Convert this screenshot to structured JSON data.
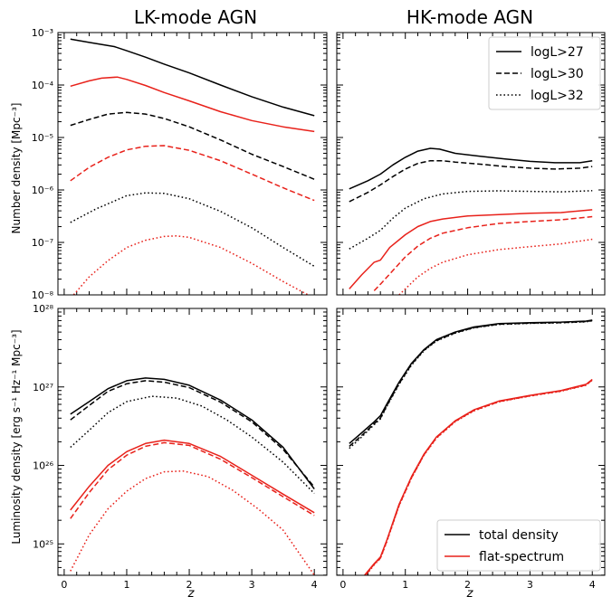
{
  "chart_data": {
    "type": "line",
    "col_titles": [
      "LK-mode AGN",
      "HK-mode AGN"
    ],
    "xlabel": "z",
    "xlim": [
      -0.1,
      4.2
    ],
    "xticks": [
      "0",
      "1",
      "2",
      "3",
      "4"
    ],
    "rows": [
      {
        "ylabel": "Number density [Mpc⁻³]",
        "yscale": "log",
        "ylim_exp": [
          -8,
          -3
        ],
        "ytick_labels": [
          "10⁻⁸",
          "10⁻⁷",
          "10⁻⁶",
          "10⁻⁵",
          "10⁻⁴",
          "10⁻³"
        ],
        "legend": {
          "panel": 1,
          "placement": "top-right",
          "entries": [
            {
              "label": "logL>27",
              "style": "solid"
            },
            {
              "label": "logL>30",
              "style": "dashed"
            },
            {
              "label": "logL>32",
              "style": "dotted"
            }
          ]
        }
      },
      {
        "ylabel": "Luminosity density [erg s⁻¹ Hz⁻¹ Mpc⁻³]",
        "yscale": "log",
        "ylim_exp": [
          24.6,
          28
        ],
        "ytick_labels": [
          "10²⁵",
          "10²⁶",
          "10²⁷",
          "10²⁸"
        ],
        "legend": {
          "panel": 1,
          "placement": "bottom-right",
          "entries": [
            {
              "label": "total density",
              "color": "#000000"
            },
            {
              "label": "flat-spectrum",
              "color": "#e8211a"
            }
          ]
        }
      }
    ],
    "panels": [
      {
        "row": 0,
        "col": 0,
        "series": [
          {
            "color": "#000000",
            "style": "solid",
            "x": [
              0.1,
              0.4,
              0.8,
              1.0,
              1.3,
              1.6,
              2.0,
              2.5,
              3.0,
              3.5,
              4.0
            ],
            "y": [
              0.00075,
              0.00065,
              0.00054,
              0.00045,
              0.00034,
              0.00025,
              0.00017,
              0.0001,
              6e-05,
              3.8e-05,
              2.6e-05
            ]
          },
          {
            "color": "#e8211a",
            "style": "solid",
            "x": [
              0.1,
              0.4,
              0.6,
              0.85,
              1.0,
              1.3,
              1.6,
              2.0,
              2.5,
              3.0,
              3.5,
              4.0
            ],
            "y": [
              9.5e-05,
              0.00012,
              0.000135,
              0.000142,
              0.000128,
              9.8e-05,
              7.2e-05,
              5e-05,
              3.1e-05,
              2.1e-05,
              1.6e-05,
              1.3e-05
            ]
          },
          {
            "color": "#000000",
            "style": "dashed",
            "x": [
              0.1,
              0.4,
              0.7,
              1.0,
              1.3,
              1.6,
              2.0,
              2.5,
              3.0,
              3.5,
              4.0
            ],
            "y": [
              1.7e-05,
              2.2e-05,
              2.8e-05,
              3e-05,
              2.8e-05,
              2.3e-05,
              1.6e-05,
              9e-06,
              4.8e-06,
              2.8e-06,
              1.6e-06
            ]
          },
          {
            "color": "#e8211a",
            "style": "dashed",
            "x": [
              0.1,
              0.4,
              0.7,
              1.0,
              1.3,
              1.6,
              2.0,
              2.5,
              3.0,
              3.5,
              4.0
            ],
            "y": [
              1.5e-06,
              2.7e-06,
              4.2e-06,
              5.8e-06,
              6.8e-06,
              7e-06,
              5.7e-06,
              3.6e-06,
              2e-06,
              1.1e-06,
              6.3e-07
            ]
          },
          {
            "color": "#000000",
            "style": "dotted",
            "x": [
              0.1,
              0.5,
              1.0,
              1.3,
              1.6,
              2.0,
              2.5,
              3.0,
              3.5,
              4.0
            ],
            "y": [
              2.4e-07,
              4.3e-07,
              7.8e-07,
              8.8e-07,
              8.6e-07,
              6.8e-07,
              3.9e-07,
              1.9e-07,
              8e-08,
              3.5e-08
            ]
          },
          {
            "color": "#e8211a",
            "style": "dotted",
            "x": [
              0.15,
              0.4,
              0.7,
              1.0,
              1.3,
              1.6,
              1.8,
              2.0,
              2.5,
              3.0,
              3.5,
              3.9
            ],
            "y": [
              1e-08,
              2.2e-08,
              4.5e-08,
              8e-08,
              1.1e-07,
              1.3e-07,
              1.33e-07,
              1.25e-07,
              8e-08,
              4e-08,
              1.8e-08,
              1e-08
            ]
          }
        ]
      },
      {
        "row": 0,
        "col": 1,
        "series": [
          {
            "color": "#000000",
            "style": "solid",
            "x": [
              0.1,
              0.4,
              0.6,
              0.8,
              1.0,
              1.2,
              1.4,
              1.55,
              1.8,
              2.2,
              2.6,
              3.0,
              3.4,
              3.8,
              4.0
            ],
            "y": [
              1.05e-06,
              1.5e-06,
              2e-06,
              3e-06,
              4.2e-06,
              5.5e-06,
              6.2e-06,
              6e-06,
              5e-06,
              4.4e-06,
              3.9e-06,
              3.5e-06,
              3.3e-06,
              3.3e-06,
              3.6e-06
            ]
          },
          {
            "color": "#000000",
            "style": "dashed",
            "x": [
              0.1,
              0.4,
              0.6,
              0.8,
              1.0,
              1.2,
              1.4,
              1.6,
              1.8,
              2.2,
              2.6,
              3.0,
              3.4,
              3.8,
              4.0
            ],
            "y": [
              6e-07,
              9e-07,
              1.25e-06,
              1.8e-06,
              2.5e-06,
              3.2e-06,
              3.6e-06,
              3.6e-06,
              3.4e-06,
              3.1e-06,
              2.8e-06,
              2.6e-06,
              2.5e-06,
              2.6e-06,
              2.8e-06
            ]
          },
          {
            "color": "#000000",
            "style": "dotted",
            "x": [
              0.1,
              0.4,
              0.6,
              0.8,
              1.0,
              1.3,
              1.6,
              2.0,
              2.5,
              3.0,
              3.5,
              4.0
            ],
            "y": [
              7.5e-08,
              1.2e-07,
              1.7e-07,
              2.9e-07,
              4.5e-07,
              6.8e-07,
              8.4e-07,
              9.4e-07,
              9.6e-07,
              9.4e-07,
              9.2e-07,
              9.7e-07
            ]
          },
          {
            "color": "#e8211a",
            "style": "solid",
            "x": [
              0.1,
              0.3,
              0.5,
              0.6,
              0.75,
              1.0,
              1.2,
              1.4,
              1.6,
              2.0,
              2.5,
              3.0,
              3.5,
              4.0
            ],
            "y": [
              1.3e-08,
              2.4e-08,
              4.2e-08,
              4.6e-08,
              8e-08,
              1.4e-07,
              2e-07,
              2.5e-07,
              2.8e-07,
              3.2e-07,
              3.4e-07,
              3.6e-07,
              3.7e-07,
              4.2e-07
            ]
          },
          {
            "color": "#e8211a",
            "style": "dashed",
            "x": [
              0.5,
              0.6,
              0.75,
              1.0,
              1.2,
              1.4,
              1.6,
              2.0,
              2.5,
              3.0,
              3.5,
              4.0
            ],
            "y": [
              1.2e-08,
              1.6e-08,
              2.5e-08,
              5.3e-08,
              8.5e-08,
              1.2e-07,
              1.5e-07,
              1.9e-07,
              2.3e-07,
              2.5e-07,
              2.7e-07,
              3.1e-07
            ]
          },
          {
            "color": "#e8211a",
            "style": "dotted",
            "x": [
              0.9,
              1.0,
              1.2,
              1.4,
              1.6,
              2.0,
              2.5,
              3.0,
              3.5,
              4.0
            ],
            "y": [
              1e-08,
              1.3e-08,
              2.2e-08,
              3.2e-08,
              4.2e-08,
              5.8e-08,
              7.3e-08,
              8.3e-08,
              9.4e-08,
              1.15e-07
            ]
          }
        ]
      },
      {
        "row": 1,
        "col": 0,
        "series": [
          {
            "color": "#000000",
            "style": "solid",
            "x": [
              0.1,
              0.4,
              0.7,
              1.0,
              1.3,
              1.6,
              2.0,
              2.5,
              3.0,
              3.5,
              4.0
            ],
            "y": [
              4.5e+26,
              6.5e+26,
              9.5e+26,
              1.2e+27,
              1.3e+27,
              1.25e+27,
              1.05e+27,
              6.8e+26,
              3.8e+26,
              1.7e+26,
              5e+25
            ]
          },
          {
            "color": "#000000",
            "style": "dashed",
            "x": [
              0.1,
              0.4,
              0.7,
              1.0,
              1.3,
              1.6,
              2.0,
              2.5,
              3.0,
              3.5,
              4.0
            ],
            "y": [
              3.8e+26,
              5.8e+26,
              8.8e+26,
              1.1e+27,
              1.2e+27,
              1.15e+27,
              9.8e+26,
              6.4e+26,
              3.6e+26,
              1.6e+26,
              5.3e+25
            ]
          },
          {
            "color": "#000000",
            "style": "dotted",
            "x": [
              0.1,
              0.4,
              0.7,
              1.0,
              1.4,
              1.8,
              2.2,
              2.6,
              3.0,
              3.5,
              4.0
            ],
            "y": [
              1.7e+26,
              2.8e+26,
              4.7e+26,
              6.5e+26,
              7.6e+26,
              7.2e+26,
              5.7e+26,
              3.8e+26,
              2.3e+26,
              1.1e+26,
              4.4e+25
            ]
          },
          {
            "color": "#e8211a",
            "style": "solid",
            "x": [
              0.1,
              0.4,
              0.7,
              1.0,
              1.3,
              1.6,
              2.0,
              2.5,
              3.0,
              3.5,
              4.0
            ],
            "y": [
              2.7e+25,
              5.4e+25,
              1e+26,
              1.5e+26,
              1.9e+26,
              2.1e+26,
              1.9e+26,
              1.3e+26,
              7.5e+25,
              4.3e+25,
              2.5e+25
            ]
          },
          {
            "color": "#e8211a",
            "style": "dashed",
            "x": [
              0.1,
              0.4,
              0.7,
              1.0,
              1.3,
              1.6,
              2.0,
              2.5,
              3.0,
              3.5,
              4.0
            ],
            "y": [
              2.1e+25,
              4.5e+25,
              8.8e+25,
              1.35e+26,
              1.75e+26,
              1.95e+26,
              1.8e+26,
              1.2e+26,
              7e+25,
              4e+25,
              2.3e+25
            ]
          },
          {
            "color": "#e8211a",
            "style": "dotted",
            "x": [
              0.1,
              0.4,
              0.7,
              1.0,
              1.3,
              1.6,
              1.9,
              2.3,
              2.7,
              3.1,
              3.5,
              4.0
            ],
            "y": [
              4.5e+24,
              1.3e+25,
              2.8e+25,
              4.7e+25,
              6.8e+25,
              8.3e+25,
              8.5e+25,
              7.2e+25,
              4.8e+25,
              2.8e+25,
              1.5e+25,
              4e+24
            ]
          }
        ]
      },
      {
        "row": 1,
        "col": 1,
        "series": [
          {
            "color": "#000000",
            "style": "solid",
            "x": [
              0.1,
              0.3,
              0.5,
              0.6,
              0.7,
              0.9,
              1.1,
              1.3,
              1.5,
              1.8,
              2.1,
              2.5,
              3.0,
              3.5,
              3.9,
              4.0
            ],
            "y": [
              1.9e+26,
              2.6e+26,
              3.6e+26,
              4.3e+26,
              6e+26,
              1.15e+27,
              2e+27,
              3e+27,
              4e+27,
              5e+27,
              5.8e+27,
              6.4e+27,
              6.6e+27,
              6.7e+27,
              6.9e+27,
              7.1e+27
            ]
          },
          {
            "color": "#000000",
            "style": "dashed",
            "x": [
              0.1,
              0.3,
              0.5,
              0.6,
              0.7,
              0.9,
              1.1,
              1.3,
              1.5,
              1.8,
              2.1,
              2.5,
              3.0,
              3.5,
              3.9,
              4.0
            ],
            "y": [
              1.75e+26,
              2.4e+26,
              3.4e+26,
              4e+26,
              5.7e+26,
              1.1e+27,
              1.95e+27,
              2.95e+27,
              3.9e+27,
              4.9e+27,
              5.7e+27,
              6.3e+27,
              6.5e+27,
              6.6e+27,
              6.8e+27,
              7e+27
            ]
          },
          {
            "color": "#000000",
            "style": "dotted",
            "x": [
              0.1,
              0.3,
              0.5,
              0.6,
              0.7,
              0.9,
              1.1,
              1.3,
              1.5,
              1.8,
              2.1,
              2.5,
              3.0,
              3.5,
              3.9,
              4.0
            ],
            "y": [
              1.65e+26,
              2.3e+26,
              3.3e+26,
              3.9e+26,
              5.6e+26,
              1.08e+27,
              1.9e+27,
              2.9e+27,
              3.85e+27,
              4.85e+27,
              5.65e+27,
              6.25e+27,
              6.45e+27,
              6.55e+27,
              6.75e+27,
              6.95e+27
            ]
          },
          {
            "color": "#e8211a",
            "style": "solid",
            "x": [
              0.3,
              0.5,
              0.6,
              0.7,
              0.9,
              1.1,
              1.3,
              1.5,
              1.8,
              2.1,
              2.5,
              3.0,
              3.5,
              3.9,
              4.0
            ],
            "y": [
              3.6e+24,
              5.6e+24,
              6.8e+24,
              1.1e+25,
              3.2e+25,
              7.2e+25,
              1.4e+26,
              2.3e+26,
              3.7e+26,
              5.1e+26,
              6.6e+26,
              7.8e+26,
              9e+26,
              1.08e+27,
              1.25e+27
            ]
          },
          {
            "color": "#e8211a",
            "style": "dashed",
            "x": [
              0.3,
              0.5,
              0.6,
              0.7,
              0.9,
              1.1,
              1.3,
              1.5,
              1.8,
              2.1,
              2.5,
              3.0,
              3.5,
              3.9,
              4.0
            ],
            "y": [
              3.5e+24,
              5.5e+24,
              6.6e+24,
              1.07e+25,
              3.1e+25,
              7e+25,
              1.37e+26,
              2.25e+26,
              3.65e+26,
              5e+26,
              6.5e+26,
              7.7e+26,
              8.9e+26,
              1.06e+27,
              1.23e+27
            ]
          },
          {
            "color": "#e8211a",
            "style": "dotted",
            "x": [
              0.3,
              0.5,
              0.6,
              0.7,
              0.9,
              1.1,
              1.3,
              1.5,
              1.8,
              2.1,
              2.5,
              3.0,
              3.5,
              3.9,
              4.0
            ],
            "y": [
              3.4e+24,
              5.4e+24,
              6.5e+24,
              1.05e+25,
              3.05e+25,
              6.9e+25,
              1.35e+26,
              2.22e+26,
              3.6e+26,
              4.95e+26,
              6.45e+26,
              7.65e+26,
              8.8e+26,
              1.05e+27,
              1.22e+27
            ]
          }
        ]
      }
    ]
  }
}
